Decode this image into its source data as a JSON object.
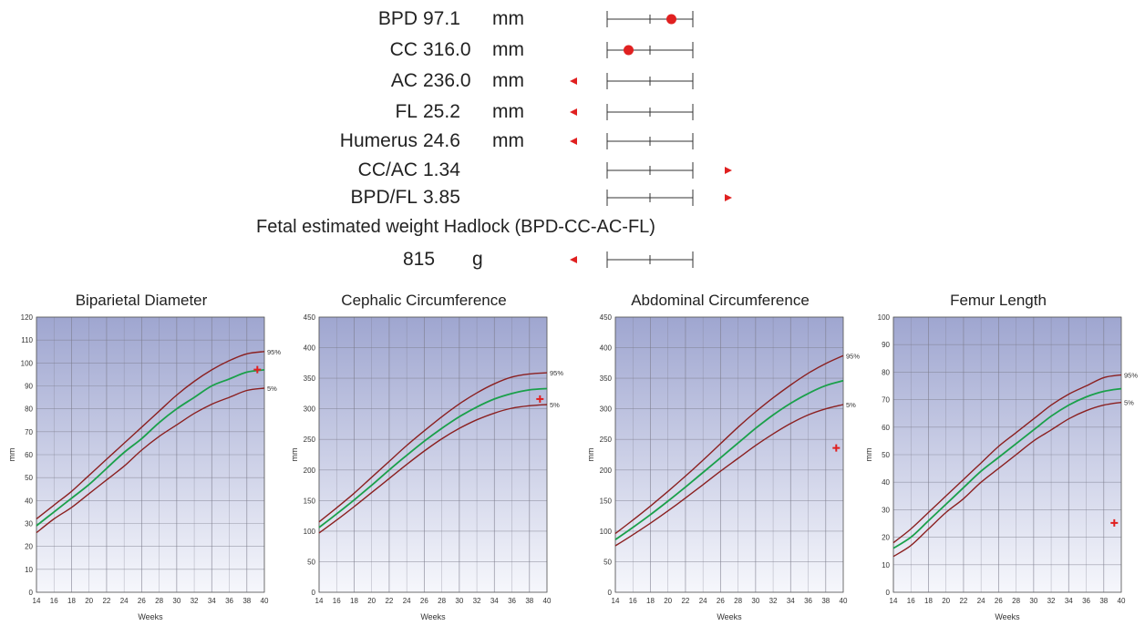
{
  "summary": {
    "rows": [
      {
        "label": "BPD",
        "value": "97.1",
        "unit": "mm",
        "position": 0.25,
        "out_of_range": "none"
      },
      {
        "label": "CC",
        "value": "316.0",
        "unit": "mm",
        "position": -0.25,
        "out_of_range": "none"
      },
      {
        "label": "AC",
        "value": "236.0",
        "unit": "mm",
        "position": null,
        "out_of_range": "below"
      },
      {
        "label": "FL",
        "value": "25.2",
        "unit": "mm",
        "position": null,
        "out_of_range": "below"
      },
      {
        "label": "Humerus",
        "value": "24.6",
        "unit": "mm",
        "position": null,
        "out_of_range": "below"
      },
      {
        "label": "CC/AC",
        "value": "1.34",
        "unit": "",
        "position": null,
        "out_of_range": "above"
      },
      {
        "label": "BPD/FL",
        "value": "3.85",
        "unit": "",
        "position": null,
        "out_of_range": "above"
      }
    ],
    "efw_title": "Fetal estimated weight Hadlock (BPD-CC-AC-FL)",
    "efw": {
      "value": "815",
      "unit": "g",
      "position": null,
      "out_of_range": "below"
    }
  },
  "colors": {
    "percentile_line": "#8b2020",
    "median_line": "#1aa04a",
    "marker": "#e02020",
    "plot_top": "#9fa6d0",
    "plot_bottom": "#f6f7fc",
    "grid": "#7a7a8a"
  },
  "chart_data": [
    {
      "type": "line",
      "title": "Biparietal Diameter",
      "xlabel": "Weeks",
      "ylabel": "mm",
      "xlim": [
        14,
        40
      ],
      "ylim": [
        0,
        120
      ],
      "xticks": [
        14,
        16,
        18,
        20,
        22,
        24,
        26,
        28,
        30,
        32,
        34,
        36,
        38,
        40
      ],
      "yticks": [
        0,
        10,
        20,
        30,
        40,
        50,
        60,
        70,
        80,
        90,
        100,
        110,
        120
      ],
      "grid": true,
      "series": [
        {
          "name": "95%",
          "role": "p95",
          "x": [
            14,
            16,
            18,
            20,
            22,
            24,
            26,
            28,
            30,
            32,
            34,
            36,
            38,
            40
          ],
          "values": [
            32,
            38,
            44,
            51,
            58,
            65,
            72,
            79,
            86,
            92,
            97,
            101,
            104,
            105
          ]
        },
        {
          "name": "",
          "role": "median",
          "x": [
            14,
            16,
            18,
            20,
            22,
            24,
            26,
            28,
            30,
            32,
            34,
            36,
            38,
            40
          ],
          "values": [
            29,
            35,
            41,
            47,
            54,
            61,
            67,
            74,
            80,
            85,
            90,
            93,
            96,
            97
          ]
        },
        {
          "name": "5%",
          "role": "p5",
          "x": [
            14,
            16,
            18,
            20,
            22,
            24,
            26,
            28,
            30,
            32,
            34,
            36,
            38,
            40
          ],
          "values": [
            26,
            32,
            37,
            43,
            49,
            55,
            62,
            68,
            73,
            78,
            82,
            85,
            88,
            89
          ]
        }
      ],
      "marker": {
        "x": 39.2,
        "y": 97.1
      }
    },
    {
      "type": "line",
      "title": "Cephalic Circumference",
      "xlabel": "Weeks",
      "ylabel": "mm",
      "xlim": [
        14,
        40
      ],
      "ylim": [
        0,
        450
      ],
      "xticks": [
        14,
        16,
        18,
        20,
        22,
        24,
        26,
        28,
        30,
        32,
        34,
        36,
        38,
        40
      ],
      "yticks": [
        0,
        50,
        100,
        150,
        200,
        250,
        300,
        350,
        400,
        450
      ],
      "grid": true,
      "series": [
        {
          "name": "95%",
          "role": "p95",
          "x": [
            14,
            16,
            18,
            20,
            22,
            24,
            26,
            28,
            30,
            32,
            34,
            36,
            38,
            40
          ],
          "values": [
            115,
            138,
            162,
            188,
            214,
            240,
            264,
            287,
            308,
            326,
            341,
            352,
            357,
            359
          ]
        },
        {
          "name": "",
          "role": "median",
          "x": [
            14,
            16,
            18,
            20,
            22,
            24,
            26,
            28,
            30,
            32,
            34,
            36,
            38,
            40
          ],
          "values": [
            106,
            128,
            151,
            175,
            200,
            224,
            247,
            268,
            287,
            303,
            316,
            325,
            331,
            333
          ]
        },
        {
          "name": "5%",
          "role": "p5",
          "x": [
            14,
            16,
            18,
            20,
            22,
            24,
            26,
            28,
            30,
            32,
            34,
            36,
            38,
            40
          ],
          "values": [
            97,
            118,
            140,
            163,
            186,
            209,
            231,
            251,
            268,
            282,
            293,
            301,
            305,
            307
          ]
        }
      ],
      "marker": {
        "x": 39.2,
        "y": 316
      }
    },
    {
      "type": "line",
      "title": "Abdominal Circumference",
      "xlabel": "Weeks",
      "ylabel": "mm",
      "xlim": [
        14,
        40
      ],
      "ylim": [
        0,
        450
      ],
      "xticks": [
        14,
        16,
        18,
        20,
        22,
        24,
        26,
        28,
        30,
        32,
        34,
        36,
        38,
        40
      ],
      "yticks": [
        0,
        50,
        100,
        150,
        200,
        250,
        300,
        350,
        400,
        450
      ],
      "grid": true,
      "series": [
        {
          "name": "95%",
          "role": "p95",
          "x": [
            14,
            16,
            18,
            20,
            22,
            24,
            26,
            28,
            30,
            32,
            34,
            36,
            38,
            40
          ],
          "values": [
            96,
            118,
            141,
            165,
            190,
            216,
            243,
            270,
            295,
            318,
            339,
            358,
            374,
            387
          ]
        },
        {
          "name": "",
          "role": "median",
          "x": [
            14,
            16,
            18,
            20,
            22,
            24,
            26,
            28,
            30,
            32,
            34,
            36,
            38,
            40
          ],
          "values": [
            86,
            106,
            127,
            149,
            172,
            196,
            220,
            244,
            268,
            290,
            309,
            325,
            338,
            346
          ]
        },
        {
          "name": "5%",
          "role": "p5",
          "x": [
            14,
            16,
            18,
            20,
            22,
            24,
            26,
            28,
            30,
            32,
            34,
            36,
            38,
            40
          ],
          "values": [
            76,
            94,
            113,
            133,
            154,
            176,
            198,
            219,
            240,
            259,
            276,
            290,
            300,
            307
          ]
        }
      ],
      "marker": {
        "x": 39.2,
        "y": 236
      }
    },
    {
      "type": "line",
      "title": "Femur Length",
      "xlabel": "Weeks",
      "ylabel": "mm",
      "xlim": [
        14,
        40
      ],
      "ylim": [
        0,
        100
      ],
      "xticks": [
        14,
        16,
        18,
        20,
        22,
        24,
        26,
        28,
        30,
        32,
        34,
        36,
        38,
        40
      ],
      "yticks": [
        0,
        10,
        20,
        30,
        40,
        50,
        60,
        70,
        80,
        90,
        100
      ],
      "grid": true,
      "series": [
        {
          "name": "95%",
          "role": "p95",
          "x": [
            14,
            16,
            18,
            20,
            22,
            24,
            26,
            28,
            30,
            32,
            34,
            36,
            38,
            40
          ],
          "values": [
            18,
            23,
            29,
            35,
            41,
            47,
            53,
            58,
            63,
            68,
            72,
            75,
            78,
            79
          ]
        },
        {
          "name": "",
          "role": "median",
          "x": [
            14,
            16,
            18,
            20,
            22,
            24,
            26,
            28,
            30,
            32,
            34,
            36,
            38,
            40
          ],
          "values": [
            16,
            20,
            26,
            32,
            38,
            44,
            49,
            54,
            59,
            64,
            68,
            71,
            73,
            74
          ]
        },
        {
          "name": "5%",
          "role": "p5",
          "x": [
            14,
            16,
            18,
            20,
            22,
            24,
            26,
            28,
            30,
            32,
            34,
            36,
            38,
            40
          ],
          "values": [
            13,
            17,
            23,
            29,
            34,
            40,
            45,
            50,
            55,
            59,
            63,
            66,
            68,
            69
          ]
        }
      ],
      "marker": {
        "x": 39.2,
        "y": 25.2
      }
    }
  ]
}
